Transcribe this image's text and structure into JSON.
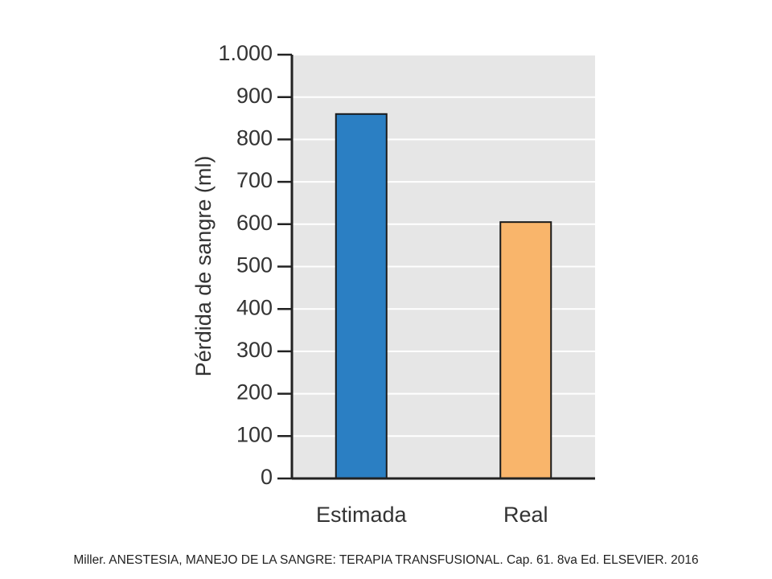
{
  "chart_data": {
    "type": "bar",
    "title": "",
    "xlabel": "",
    "ylabel": "Pérdida de sangre (ml)",
    "categories": [
      "Estimada",
      "Real"
    ],
    "values": [
      860,
      605
    ],
    "ylim": [
      0,
      1000
    ],
    "yticks": [
      0,
      100,
      200,
      300,
      400,
      500,
      600,
      700,
      800,
      900,
      1000
    ],
    "ytick_labels": [
      "0",
      "100",
      "200",
      "300",
      "400",
      "500",
      "600",
      "700",
      "800",
      "900",
      "1.000"
    ],
    "bar_colors": [
      "#2b7fc3",
      "#f9b56b"
    ],
    "plot_background": "#e6e6e6",
    "grid": true,
    "legend": false
  },
  "caption": "Miller. ANESTESIA, MANEJO DE LA SANGRE: TERAPIA TRANSFUSIONAL. Cap. 61. 8va Ed. ELSEVIER. 2016"
}
